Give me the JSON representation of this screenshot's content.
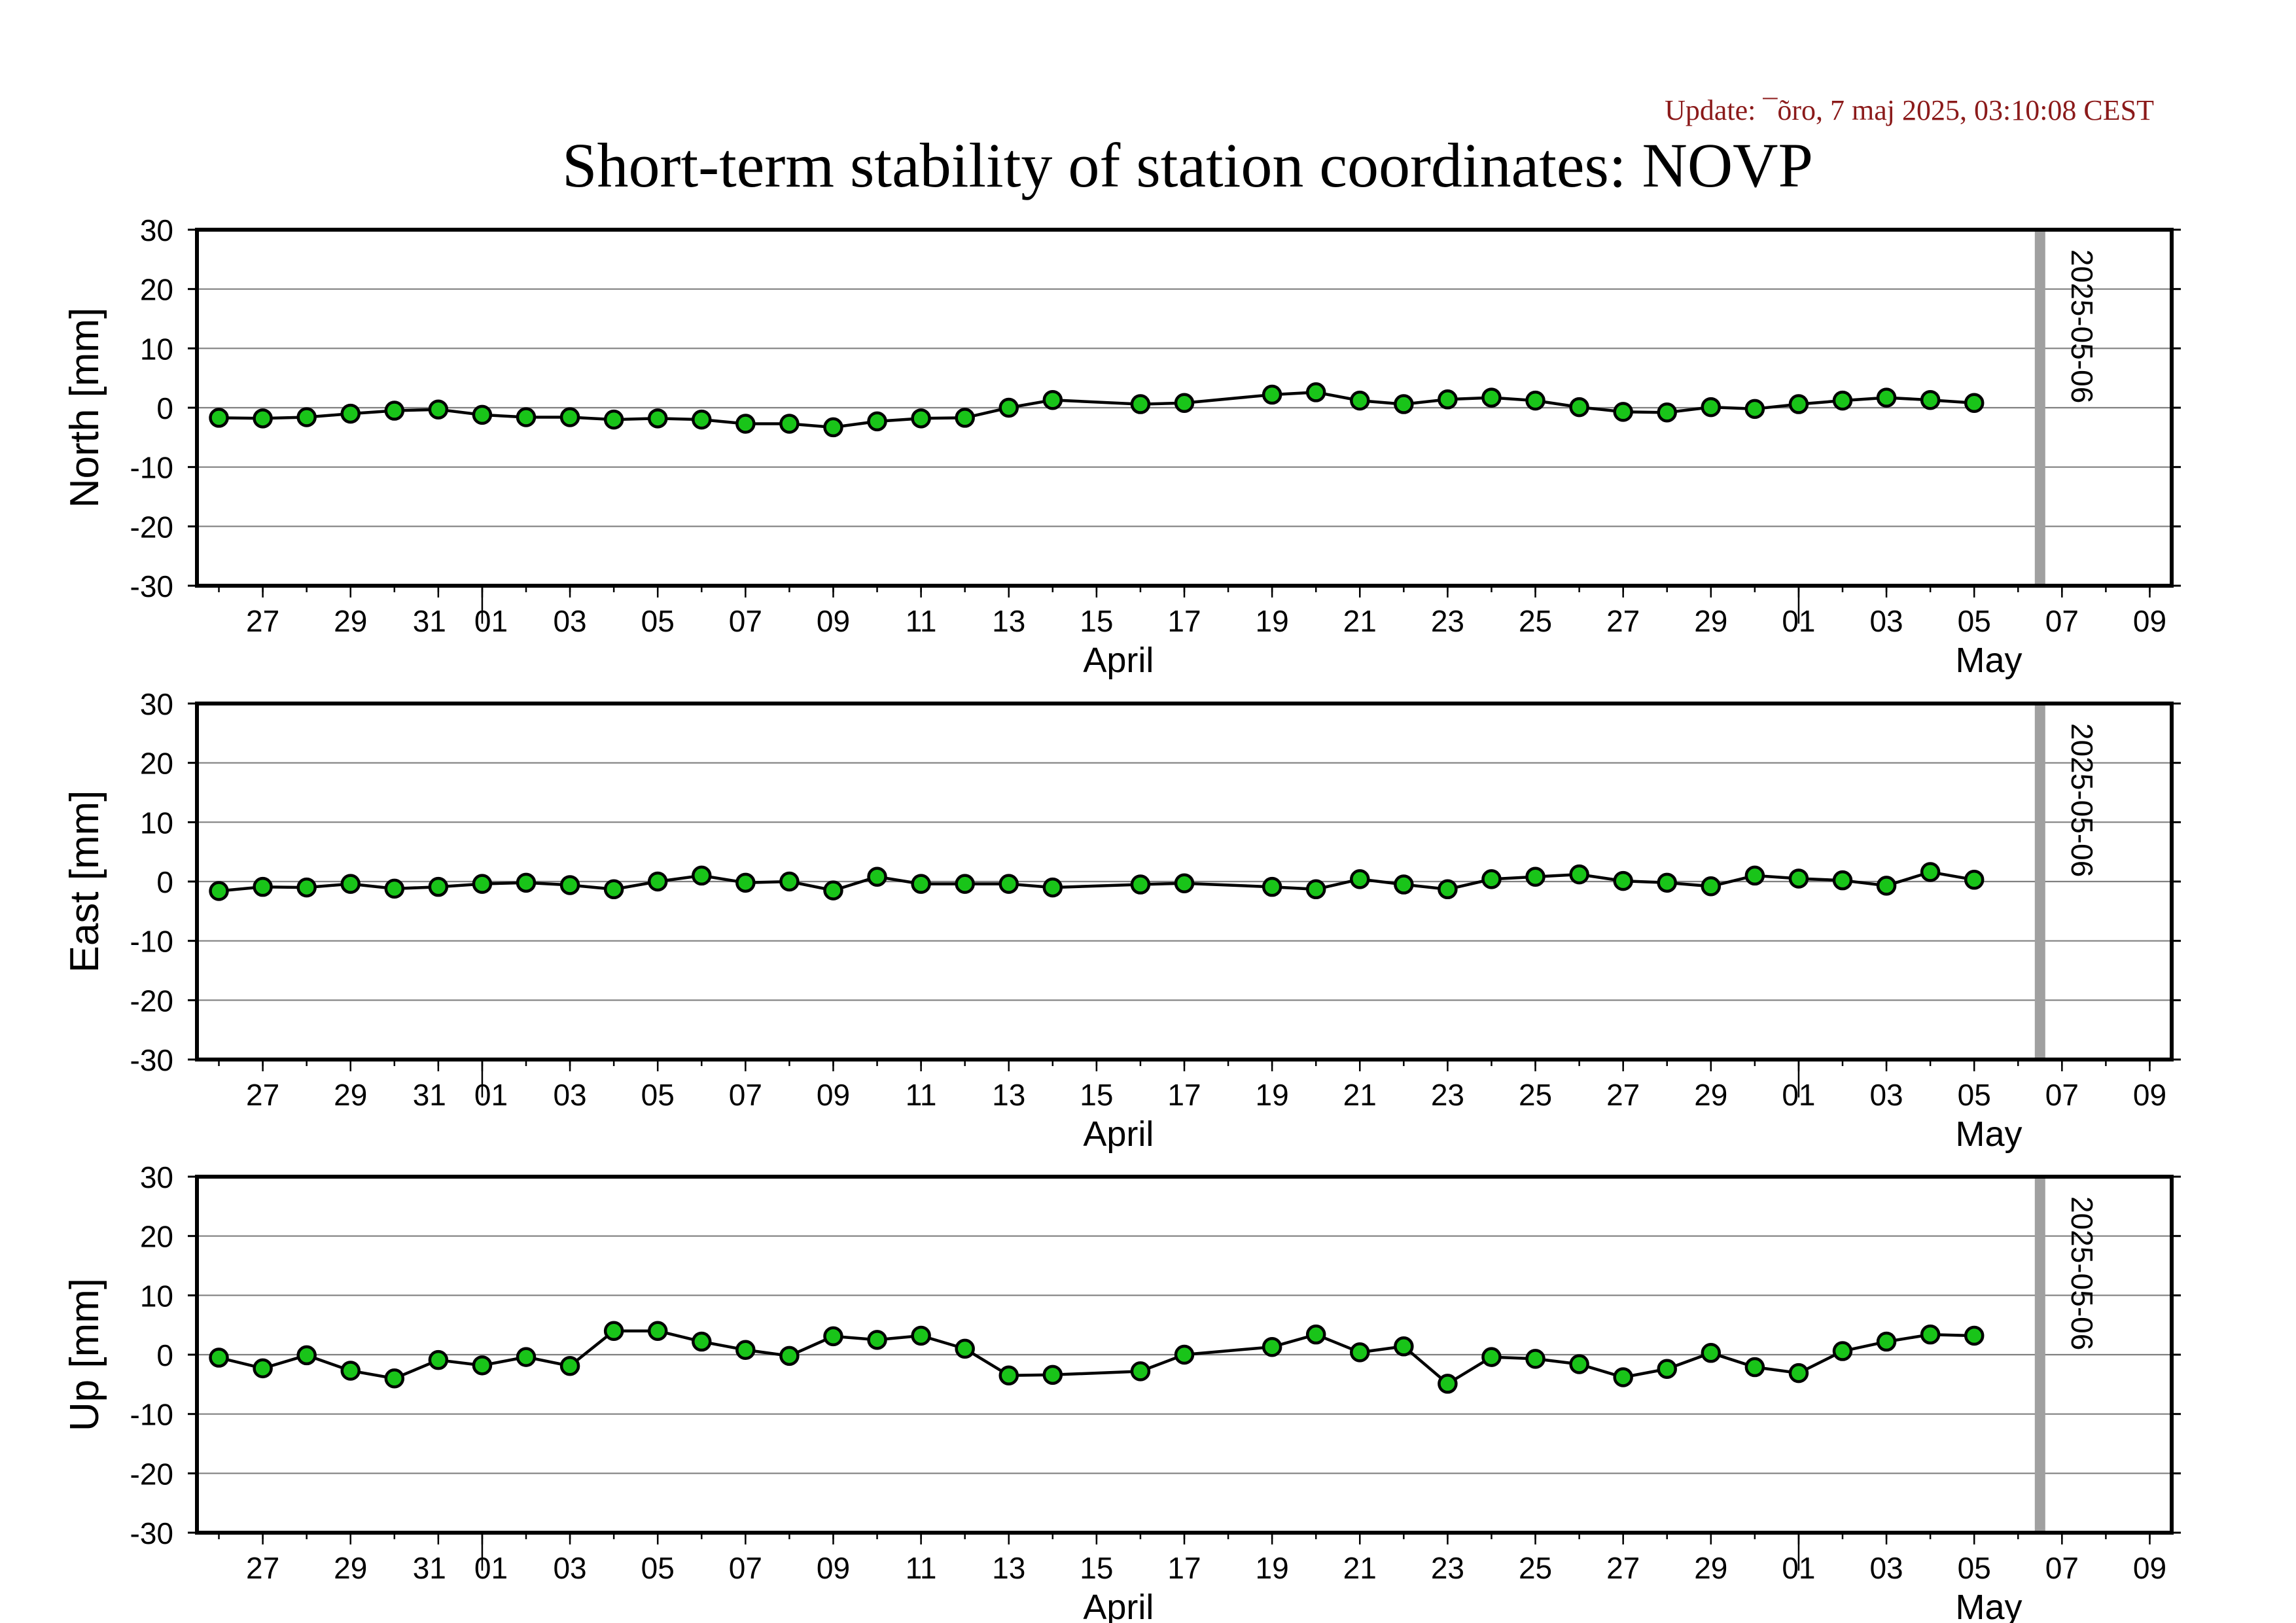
{
  "update_text": "Update: ¯õro, 7 maj 2025, 03:10:08 CEST",
  "title": "Short-term stability of station coordinates: NOVP",
  "colors": {
    "marker_fill": "#19c419",
    "marker_stroke": "#000000",
    "line": "#000000",
    "grid": "#808080",
    "frame": "#000000",
    "marker_line": "#a0a0a0",
    "update_text": "#8b1a1a"
  },
  "chart_data": [
    {
      "type": "line",
      "ylabel": "North [mm]",
      "ylim": [
        -30,
        30
      ],
      "yticks": [
        30,
        20,
        10,
        0,
        -10,
        -20,
        -30
      ],
      "grid": true,
      "xlim": [
        "2025-03-25T12:00",
        "2025-05-09T12:00"
      ],
      "x_tick_labels": [
        "27",
        "29",
        "31",
        "01",
        "03",
        "05",
        "07",
        "09",
        "11",
        "13",
        "15",
        "17",
        "19",
        "21",
        "23",
        "25",
        "27",
        "29",
        "01",
        "03",
        "05",
        "07",
        "09"
      ],
      "month_labels": [
        "April",
        "May"
      ],
      "marker_label": "2025-05-06",
      "x": [
        "2025-03-26",
        "2025-03-27",
        "2025-03-28",
        "2025-03-29",
        "2025-03-30",
        "2025-03-31",
        "2025-04-01",
        "2025-04-02",
        "2025-04-03",
        "2025-04-04",
        "2025-04-05",
        "2025-04-06",
        "2025-04-07",
        "2025-04-08",
        "2025-04-09",
        "2025-04-10",
        "2025-04-11",
        "2025-04-12",
        "2025-04-13",
        "2025-04-14",
        "2025-04-16",
        "2025-04-17",
        "2025-04-19",
        "2025-04-20",
        "2025-04-21",
        "2025-04-22",
        "2025-04-23",
        "2025-04-24",
        "2025-04-25",
        "2025-04-26",
        "2025-04-27",
        "2025-04-28",
        "2025-04-29",
        "2025-04-30",
        "2025-05-01",
        "2025-05-02",
        "2025-05-03",
        "2025-05-04",
        "2025-05-05"
      ],
      "values": [
        -1.7,
        -1.8,
        -1.6,
        -1.0,
        -0.5,
        -0.3,
        -1.2,
        -1.6,
        -1.6,
        -2.0,
        -1.8,
        -2.0,
        -2.7,
        -2.7,
        -3.3,
        -2.3,
        -1.8,
        -1.7,
        0.0,
        1.3,
        0.6,
        0.8,
        2.2,
        2.6,
        1.2,
        0.6,
        1.4,
        1.7,
        1.2,
        0.1,
        -0.7,
        -0.8,
        0.1,
        -0.2,
        0.6,
        1.2,
        1.7,
        1.3,
        0.8
      ]
    },
    {
      "type": "line",
      "ylabel": "East [mm]",
      "ylim": [
        -30,
        30
      ],
      "yticks": [
        30,
        20,
        10,
        0,
        -10,
        -20,
        -30
      ],
      "grid": true,
      "xlim": [
        "2025-03-25T12:00",
        "2025-05-09T12:00"
      ],
      "x_tick_labels": [
        "27",
        "29",
        "31",
        "01",
        "03",
        "05",
        "07",
        "09",
        "11",
        "13",
        "15",
        "17",
        "19",
        "21",
        "23",
        "25",
        "27",
        "29",
        "01",
        "03",
        "05",
        "07",
        "09"
      ],
      "month_labels": [
        "April",
        "May"
      ],
      "marker_label": "2025-05-06",
      "x": [
        "2025-03-26",
        "2025-03-27",
        "2025-03-28",
        "2025-03-29",
        "2025-03-30",
        "2025-03-31",
        "2025-04-01",
        "2025-04-02",
        "2025-04-03",
        "2025-04-04",
        "2025-04-05",
        "2025-04-06",
        "2025-04-07",
        "2025-04-08",
        "2025-04-09",
        "2025-04-10",
        "2025-04-11",
        "2025-04-12",
        "2025-04-13",
        "2025-04-14",
        "2025-04-16",
        "2025-04-17",
        "2025-04-19",
        "2025-04-20",
        "2025-04-21",
        "2025-04-22",
        "2025-04-23",
        "2025-04-24",
        "2025-04-25",
        "2025-04-26",
        "2025-04-27",
        "2025-04-28",
        "2025-04-29",
        "2025-04-30",
        "2025-05-01",
        "2025-05-02",
        "2025-05-03",
        "2025-05-04",
        "2025-05-05"
      ],
      "values": [
        -1.6,
        -0.9,
        -1.0,
        -0.4,
        -1.2,
        -0.9,
        -0.4,
        -0.2,
        -0.6,
        -1.3,
        0.0,
        1.0,
        -0.2,
        0.0,
        -1.5,
        0.8,
        -0.4,
        -0.4,
        -0.4,
        -1.0,
        -0.5,
        -0.3,
        -0.9,
        -1.3,
        0.4,
        -0.5,
        -1.3,
        0.4,
        0.8,
        1.2,
        0.1,
        -0.2,
        -0.8,
        1.0,
        0.5,
        0.2,
        -0.7,
        1.6,
        0.3
      ]
    },
    {
      "type": "line",
      "ylabel": "Up [mm]",
      "ylim": [
        -30,
        30
      ],
      "yticks": [
        30,
        20,
        10,
        0,
        -10,
        -20,
        -30
      ],
      "grid": true,
      "xlim": [
        "2025-03-25T12:00",
        "2025-05-09T12:00"
      ],
      "x_tick_labels": [
        "27",
        "29",
        "31",
        "01",
        "03",
        "05",
        "07",
        "09",
        "11",
        "13",
        "15",
        "17",
        "19",
        "21",
        "23",
        "25",
        "27",
        "29",
        "01",
        "03",
        "05",
        "07",
        "09"
      ],
      "month_labels": [
        "April",
        "May"
      ],
      "marker_label": "2025-05-06",
      "x": [
        "2025-03-26",
        "2025-03-27",
        "2025-03-28",
        "2025-03-29",
        "2025-03-30",
        "2025-03-31",
        "2025-04-01",
        "2025-04-02",
        "2025-04-03",
        "2025-04-04",
        "2025-04-05",
        "2025-04-06",
        "2025-04-07",
        "2025-04-08",
        "2025-04-09",
        "2025-04-10",
        "2025-04-11",
        "2025-04-12",
        "2025-04-13",
        "2025-04-14",
        "2025-04-16",
        "2025-04-17",
        "2025-04-19",
        "2025-04-20",
        "2025-04-21",
        "2025-04-22",
        "2025-04-23",
        "2025-04-24",
        "2025-04-25",
        "2025-04-26",
        "2025-04-27",
        "2025-04-28",
        "2025-04-29",
        "2025-04-30",
        "2025-05-01",
        "2025-05-02",
        "2025-05-03",
        "2025-05-04",
        "2025-05-05"
      ],
      "values": [
        -0.5,
        -2.3,
        -0.1,
        -2.7,
        -4.0,
        -0.9,
        -1.8,
        -0.4,
        -1.9,
        4.0,
        4.0,
        2.2,
        0.8,
        -0.2,
        3.1,
        2.5,
        3.2,
        1.0,
        -3.5,
        -3.4,
        -2.8,
        0.0,
        1.3,
        3.4,
        0.4,
        1.4,
        -4.9,
        -0.4,
        -0.7,
        -1.6,
        -3.8,
        -2.4,
        0.3,
        -2.1,
        -3.1,
        0.6,
        2.2,
        3.4,
        3.2
      ]
    }
  ]
}
